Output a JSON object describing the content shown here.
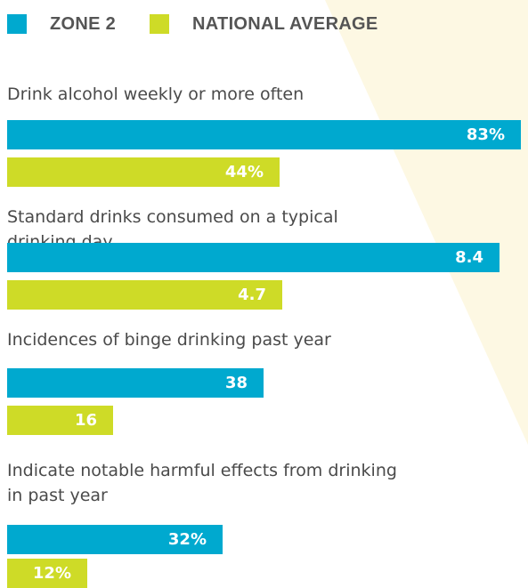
{
  "legend": [
    {
      "name": "ZONE 2",
      "color": "#00a9cf"
    },
    {
      "name": "NATIONAL AVERAGE",
      "color": "#cedb27"
    }
  ],
  "chart_data": {
    "type": "bar",
    "orientation": "horizontal",
    "categories": [
      "Drink alcohol weekly or more often",
      "Standard drinks consumed on a typical drinking day",
      "Incidences of binge drinking past year",
      "Indicate notable harmful effects from drinking in past year"
    ],
    "series": [
      {
        "name": "ZONE 2",
        "color": "#00a9cf",
        "values": [
          83,
          8.4,
          38,
          32
        ],
        "labels": [
          "83%",
          "8.4",
          "38",
          "32%"
        ]
      },
      {
        "name": "NATIONAL AVERAGE",
        "color": "#cedb27",
        "values": [
          44,
          4.7,
          16,
          12
        ],
        "labels": [
          "44%",
          "4.7",
          "16",
          "12%"
        ]
      }
    ],
    "legend_position": "top-left",
    "grid": false
  }
}
